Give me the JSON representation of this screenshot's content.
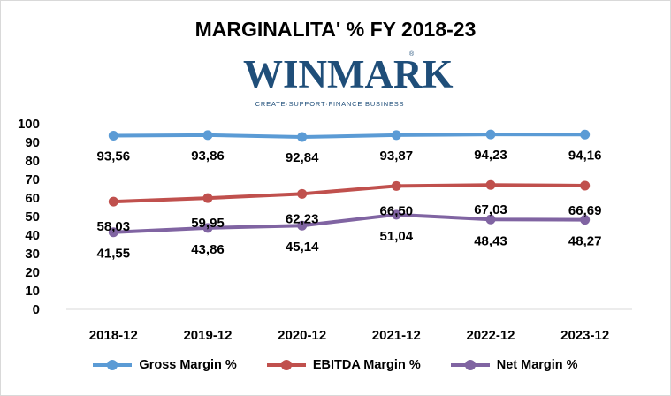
{
  "chart_data": {
    "type": "line",
    "title": "MARGINALITA' % FY 2018-23",
    "categories": [
      "2018-12",
      "2019-12",
      "2020-12",
      "2021-12",
      "2022-12",
      "2023-12"
    ],
    "ylim": [
      0,
      100
    ],
    "yticks": [
      "0",
      "10",
      "20",
      "30",
      "40",
      "50",
      "60",
      "70",
      "80",
      "90",
      "100"
    ],
    "grid": false,
    "legend_position": "bottom",
    "series": [
      {
        "name": "Gross Margin %",
        "color": "#5b9bd5",
        "values": [
          93.56,
          93.86,
          92.84,
          93.87,
          94.23,
          94.16
        ],
        "labels": [
          "93,56",
          "93,86",
          "92,84",
          "93,87",
          "94,23",
          "94,16"
        ]
      },
      {
        "name": "EBITDA Margin %",
        "color": "#c0504d",
        "values": [
          58.03,
          59.95,
          62.23,
          66.5,
          67.03,
          66.69
        ],
        "labels": [
          "58,03",
          "59,95",
          "62,23",
          "66,50",
          "67,03",
          "66,69"
        ]
      },
      {
        "name": "Net Margin %",
        "color": "#8064a2",
        "values": [
          41.55,
          43.86,
          45.14,
          51.04,
          48.43,
          48.27
        ],
        "labels": [
          "41,55",
          "43,86",
          "45,14",
          "51,04",
          "48,43",
          "48,27"
        ]
      }
    ]
  },
  "logo": {
    "word": "WINMARK",
    "registered": "®",
    "tagline": "CREATE·SUPPORT·FINANCE BUSINESS"
  }
}
